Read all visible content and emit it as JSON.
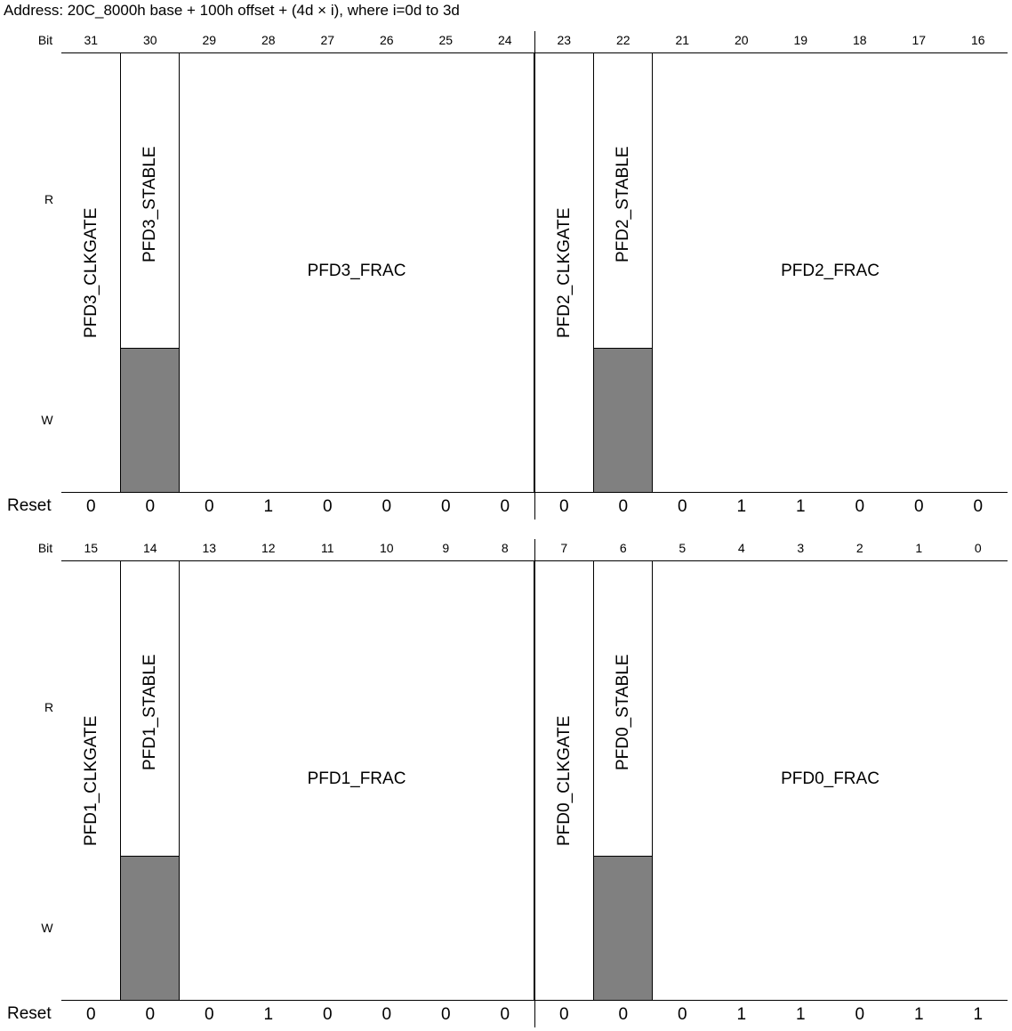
{
  "address": "Address: 20C_8000h base + 100h offset + (4d × i), where i=0d to 3d",
  "labels": {
    "bit": "Bit",
    "r": "R",
    "w": "W",
    "reset": "Reset"
  },
  "colors": {
    "reserved_write": "#808080",
    "border": "#000000",
    "background": "#ffffff"
  },
  "blocks": [
    {
      "bits": [
        "31",
        "30",
        "29",
        "28",
        "27",
        "26",
        "25",
        "24",
        "23",
        "22",
        "21",
        "20",
        "19",
        "18",
        "17",
        "16"
      ],
      "fields": [
        {
          "name": "PFD3_CLKGATE",
          "width_bits": 1,
          "orientation": "vertical",
          "write_reserved": false
        },
        {
          "name": "PFD3_STABLE",
          "width_bits": 1,
          "orientation": "vertical",
          "write_reserved": true
        },
        {
          "name": "PFD3_FRAC",
          "width_bits": 6,
          "orientation": "horizontal",
          "write_reserved": false
        },
        {
          "name": "PFD2_CLKGATE",
          "width_bits": 1,
          "orientation": "vertical",
          "write_reserved": false
        },
        {
          "name": "PFD2_STABLE",
          "width_bits": 1,
          "orientation": "vertical",
          "write_reserved": true
        },
        {
          "name": "PFD2_FRAC",
          "width_bits": 6,
          "orientation": "horizontal",
          "write_reserved": false
        }
      ],
      "reset": [
        "0",
        "0",
        "0",
        "1",
        "0",
        "0",
        "0",
        "0",
        "0",
        "0",
        "0",
        "1",
        "1",
        "0",
        "0",
        "0"
      ]
    },
    {
      "bits": [
        "15",
        "14",
        "13",
        "12",
        "11",
        "10",
        "9",
        "8",
        "7",
        "6",
        "5",
        "4",
        "3",
        "2",
        "1",
        "0"
      ],
      "fields": [
        {
          "name": "PFD1_CLKGATE",
          "width_bits": 1,
          "orientation": "vertical",
          "write_reserved": false
        },
        {
          "name": "PFD1_STABLE",
          "width_bits": 1,
          "orientation": "vertical",
          "write_reserved": true
        },
        {
          "name": "PFD1_FRAC",
          "width_bits": 6,
          "orientation": "horizontal",
          "write_reserved": false
        },
        {
          "name": "PFD0_CLKGATE",
          "width_bits": 1,
          "orientation": "vertical",
          "write_reserved": false
        },
        {
          "name": "PFD0_STABLE",
          "width_bits": 1,
          "orientation": "vertical",
          "write_reserved": true
        },
        {
          "name": "PFD0_FRAC",
          "width_bits": 6,
          "orientation": "horizontal",
          "write_reserved": false
        }
      ],
      "reset": [
        "0",
        "0",
        "0",
        "1",
        "0",
        "0",
        "0",
        "0",
        "0",
        "0",
        "0",
        "1",
        "1",
        "0",
        "1",
        "1"
      ]
    }
  ]
}
